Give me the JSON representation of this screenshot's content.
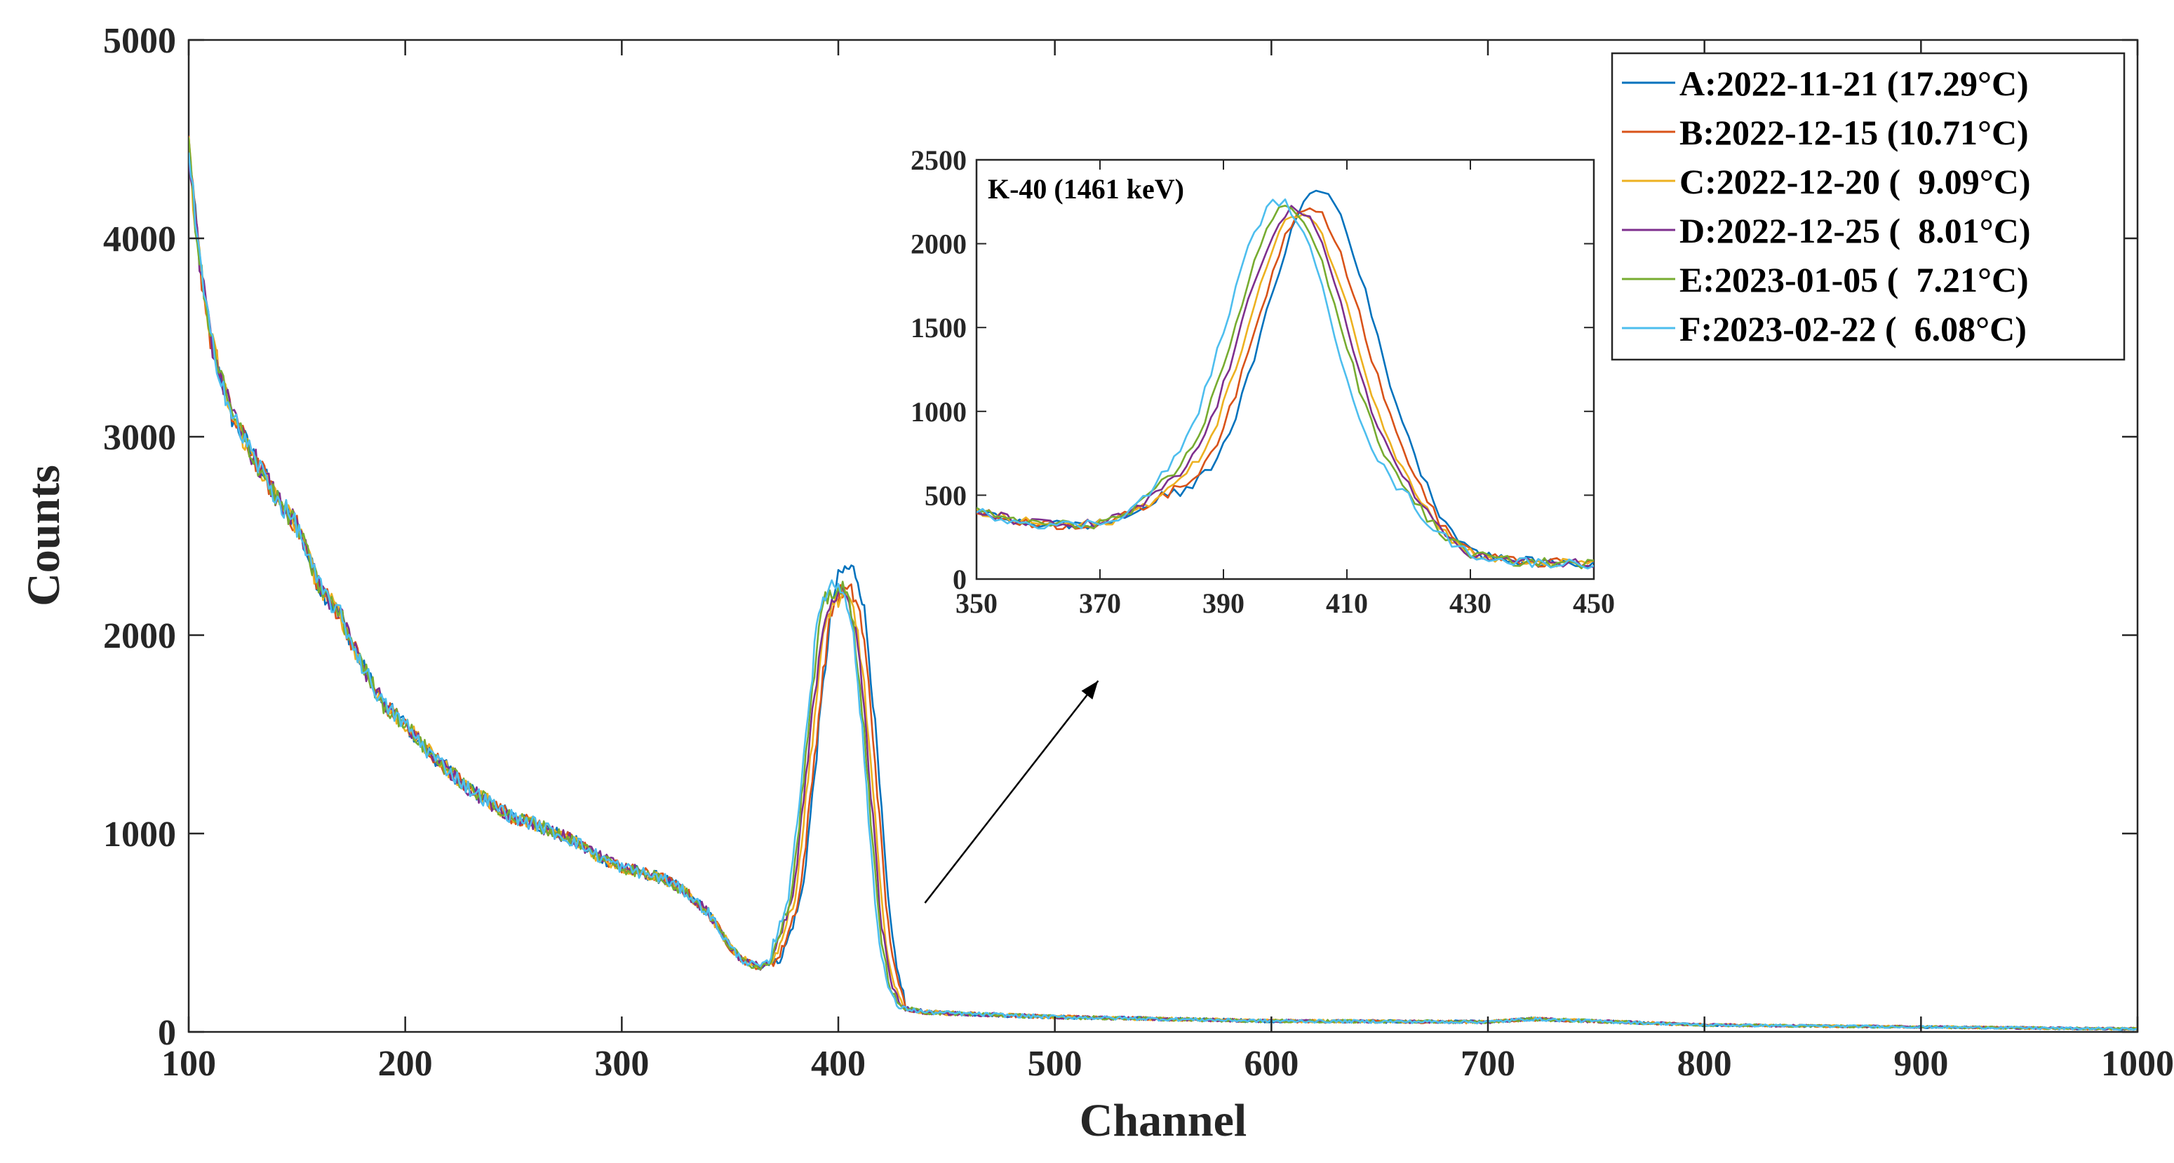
{
  "chart_data": [
    {
      "id": "main",
      "type": "line",
      "xlabel": "Channel",
      "ylabel": "Counts",
      "xlim": [
        100,
        1000
      ],
      "ylim": [
        0,
        5000
      ],
      "xticks": [
        100,
        200,
        300,
        400,
        500,
        600,
        700,
        800,
        900,
        1000
      ],
      "yticks": [
        0,
        1000,
        2000,
        3000,
        4000,
        5000
      ],
      "grid": false,
      "legend_position": "top-right",
      "shape_points": {
        "x": [
          100,
          103,
          106,
          110,
          115,
          120,
          130,
          140,
          150,
          160,
          170,
          180,
          190,
          200,
          210,
          220,
          230,
          240,
          250,
          260,
          270,
          280,
          290,
          300,
          310,
          320,
          330,
          340,
          350,
          355,
          360,
          365,
          370,
          380,
          390,
          395,
          400,
          405,
          410,
          420,
          425,
          430,
          440,
          450,
          500,
          600,
          700,
          720,
          800,
          900,
          1000
        ],
        "y": [
          4450,
          4100,
          3800,
          3500,
          3300,
          3100,
          2900,
          2700,
          2550,
          2250,
          2100,
          1850,
          1650,
          1550,
          1420,
          1320,
          1220,
          1150,
          1080,
          1050,
          1000,
          950,
          880,
          830,
          800,
          770,
          700,
          600,
          430,
          370,
          340,
          330,
          370,
          650,
          1450,
          1950,
          2150,
          2000,
          1450,
          420,
          200,
          120,
          100,
          95,
          75,
          55,
          50,
          65,
          35,
          25,
          15
        ]
      },
      "series": [
        {
          "name": "A:2022-11-21 (17.29°C)",
          "color": "#0072BD",
          "peak_channel": 405,
          "peak_counts": 2340
        },
        {
          "name": "B:2022-12-15 (10.71°C)",
          "color": "#D95319",
          "peak_channel": 404,
          "peak_counts": 2220
        },
        {
          "name": "C:2022-12-20 (  9.09°C)",
          "color": "#EDB120",
          "peak_channel": 402,
          "peak_counts": 2180
        },
        {
          "name": "D:2022-12-25 (  8.01°C)",
          "color": "#7E2F8E",
          "peak_channel": 401,
          "peak_counts": 2200
        },
        {
          "name": "E:2023-01-05 (  7.21°C)",
          "color": "#77AC30",
          "peak_channel": 400,
          "peak_counts": 2230
        },
        {
          "name": "F:2023-02-22 (  6.08°C)",
          "color": "#4DBEEE",
          "peak_channel": 399,
          "peak_counts": 2260
        }
      ]
    },
    {
      "id": "inset",
      "type": "line",
      "title": "K-40 (1461 keV)",
      "xlim": [
        350,
        450
      ],
      "ylim": [
        0,
        2500
      ],
      "xticks": [
        350,
        370,
        390,
        410,
        430,
        450
      ],
      "yticks": [
        0,
        500,
        1000,
        1500,
        2000,
        2500
      ],
      "grid": false,
      "baseline": {
        "x": [
          350,
          355,
          360,
          365,
          370,
          375,
          380,
          420,
          425,
          430,
          435,
          440,
          445,
          450
        ],
        "y": [
          400,
          360,
          330,
          320,
          330,
          380,
          470,
          400,
          250,
          150,
          110,
          100,
          95,
          90
        ]
      },
      "peak_height": 2000,
      "peak_sigma": 8.5,
      "series_peaks": [
        {
          "name": "A:2022-11-21 (17.29°C)",
          "center": 405.5,
          "max": 2320
        },
        {
          "name": "B:2022-12-15 (10.71°C)",
          "center": 404.0,
          "max": 2230
        },
        {
          "name": "C:2022-12-20 (  9.09°C)",
          "center": 402.5,
          "max": 2190
        },
        {
          "name": "D:2022-12-25 (  8.01°C)",
          "center": 401.5,
          "max": 2210
        },
        {
          "name": "E:2023-01-05 (  7.21°C)",
          "center": 400.5,
          "max": 2220
        },
        {
          "name": "F:2023-02-22 (  6.08°C)",
          "center": 399.0,
          "max": 2250
        }
      ]
    }
  ],
  "annotations": {
    "arrow": {
      "from_data": [
        440,
        650
      ],
      "to_data": [
        520,
        1770
      ],
      "axes": "main"
    }
  }
}
